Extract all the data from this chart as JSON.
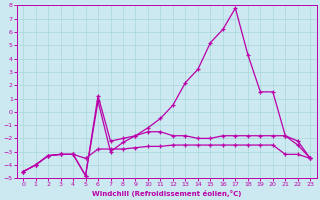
{
  "xlabel": "Windchill (Refroidissement éolien,°C)",
  "bg_color": "#cce8f0",
  "grid_color": "#a8d8d8",
  "line_color": "#bb00aa",
  "xlim": [
    -0.5,
    23.5
  ],
  "ylim": [
    -5,
    8
  ],
  "xticks": [
    0,
    1,
    2,
    3,
    4,
    5,
    6,
    7,
    8,
    9,
    10,
    11,
    12,
    13,
    14,
    15,
    16,
    17,
    18,
    19,
    20,
    21,
    22,
    23
  ],
  "yticks": [
    -5,
    -4,
    -3,
    -2,
    -1,
    0,
    1,
    2,
    3,
    4,
    5,
    6,
    7,
    8
  ],
  "curve_main_x": [
    0,
    1,
    2,
    3,
    4,
    5,
    6,
    7,
    8,
    9,
    10,
    11,
    12,
    13,
    14,
    15,
    16,
    17,
    18,
    19,
    20,
    21,
    22,
    23
  ],
  "curve_main_y": [
    -4.5,
    -4.0,
    -3.3,
    -3.2,
    -3.2,
    -4.8,
    0.8,
    -3.0,
    -2.3,
    -1.8,
    -1.2,
    -0.5,
    0.5,
    2.2,
    3.2,
    5.2,
    6.2,
    7.8,
    4.3,
    1.5,
    1.5,
    -1.8,
    -2.2,
    -3.5
  ],
  "curve_mid_x": [
    0,
    1,
    2,
    3,
    4,
    5,
    6,
    7,
    8,
    9,
    10,
    11,
    12,
    13,
    14,
    15,
    16,
    17,
    18,
    19,
    20,
    21,
    22,
    23
  ],
  "curve_mid_y": [
    -4.5,
    -4.0,
    -3.3,
    -3.2,
    -3.2,
    -4.8,
    1.2,
    -2.2,
    -2.0,
    -1.8,
    -1.5,
    -1.5,
    -1.8,
    -1.8,
    -2.0,
    -2.0,
    -1.8,
    -1.8,
    -1.8,
    -1.8,
    -1.8,
    -1.8,
    -2.5,
    -3.5
  ],
  "curve_flat_x": [
    0,
    1,
    2,
    3,
    4,
    5,
    6,
    7,
    8,
    9,
    10,
    11,
    12,
    13,
    14,
    15,
    16,
    17,
    18,
    19,
    20,
    21,
    22,
    23
  ],
  "curve_flat_y": [
    -4.5,
    -4.0,
    -3.3,
    -3.2,
    -3.2,
    -3.5,
    -2.8,
    -2.8,
    -2.8,
    -2.7,
    -2.6,
    -2.6,
    -2.5,
    -2.5,
    -2.5,
    -2.5,
    -2.5,
    -2.5,
    -2.5,
    -2.5,
    -2.5,
    -3.2,
    -3.2,
    -3.5
  ]
}
